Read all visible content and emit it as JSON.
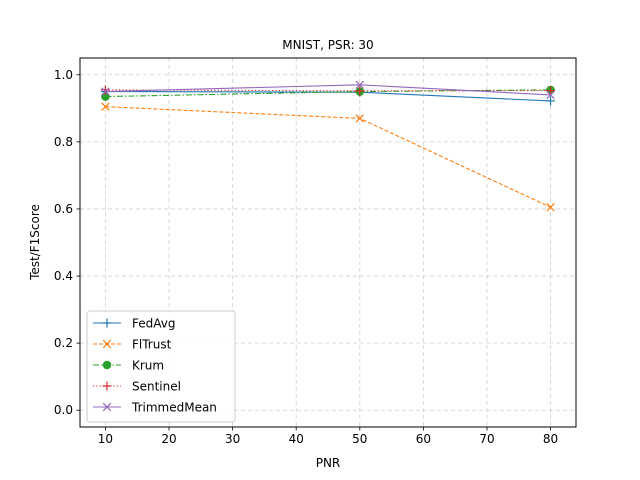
{
  "chart_data": {
    "type": "line",
    "title": "MNIST, PSR: 30",
    "xlabel": "PNR",
    "ylabel": "Test/F1Score",
    "xlim": [
      6,
      84
    ],
    "ylim": [
      -0.05,
      1.05
    ],
    "x_ticks": [
      10,
      20,
      30,
      40,
      50,
      60,
      70,
      80
    ],
    "y_ticks": [
      0.0,
      0.2,
      0.4,
      0.6,
      0.8,
      1.0
    ],
    "x_tick_labels": [
      "10",
      "20",
      "30",
      "40",
      "50",
      "60",
      "70",
      "80"
    ],
    "y_tick_labels": [
      "0.0",
      "0.2",
      "0.4",
      "0.6",
      "0.8",
      "1.0"
    ],
    "grid": true,
    "legend_position": "lower-left",
    "x": [
      10,
      50,
      80
    ],
    "series": [
      {
        "name": "FedAvg",
        "values": [
          0.95,
          0.948,
          0.922
        ],
        "color": "#1f77b4",
        "dash": "solid",
        "marker": "plus"
      },
      {
        "name": "FlTrust",
        "values": [
          0.905,
          0.87,
          0.605
        ],
        "color": "#ff7f0e",
        "dash": "dashed",
        "marker": "x"
      },
      {
        "name": "Krum",
        "values": [
          0.935,
          0.95,
          0.955
        ],
        "color": "#2ca02c",
        "dash": "dashdot",
        "marker": "circle"
      },
      {
        "name": "Sentinel",
        "values": [
          0.955,
          0.952,
          0.953
        ],
        "color": "#d62728",
        "dash": "dotted",
        "marker": "plus"
      },
      {
        "name": "TrimmedMean",
        "values": [
          0.95,
          0.97,
          0.94
        ],
        "color": "#9467bd",
        "dash": "solid",
        "marker": "x"
      }
    ]
  }
}
